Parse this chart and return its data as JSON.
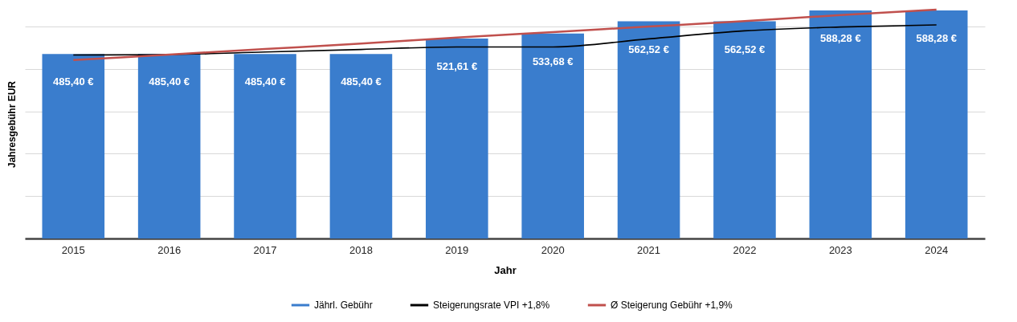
{
  "chart_data": {
    "type": "bar",
    "xlabel": "Jahr",
    "ylabel": "Jahresgebühr EUR",
    "categories": [
      "2015",
      "2016",
      "2017",
      "2018",
      "2019",
      "2020",
      "2021",
      "2022",
      "2023",
      "2024"
    ],
    "series": [
      {
        "name": "Jährl. Gebühr",
        "color": "#3a7dcd",
        "values": [
          485.4,
          485.4,
          485.4,
          485.4,
          521.61,
          533.68,
          562.52,
          562.52,
          588.28,
          588.28
        ],
        "value_labels": [
          "485,40 €",
          "485,40 €",
          "485,40 €",
          "485,40 €",
          "521,61 €",
          "533,68 €",
          "562,52 €",
          "562,52 €",
          "588,28 €",
          "588,28 €"
        ]
      },
      {
        "name": "Steigerungsrate VPI +1,8%",
        "type": "line",
        "color": "#000000",
        "values": [
          483,
          484,
          490,
          496,
          502,
          502,
          521,
          540,
          549,
          554
        ]
      },
      {
        "name": "Ø Steigerung Gebühr +1,9%",
        "type": "line",
        "color": "#c0504d",
        "values": [
          471,
          484,
          497,
          510,
          524,
          537,
          550,
          563,
          577,
          590
        ]
      }
    ],
    "yticks": [
      {
        "value": 50,
        "label": null
      },
      {
        "value": 150,
        "label": null
      },
      {
        "value": 250,
        "label": null
      },
      {
        "value": 350,
        "label": null
      },
      {
        "value": 450,
        "label": null
      },
      {
        "value": 550,
        "label": null
      }
    ],
    "tick_labels": "x",
    "grid": "y",
    "legend": "bottom",
    "line_style": "solid",
    "marker": "none"
  }
}
